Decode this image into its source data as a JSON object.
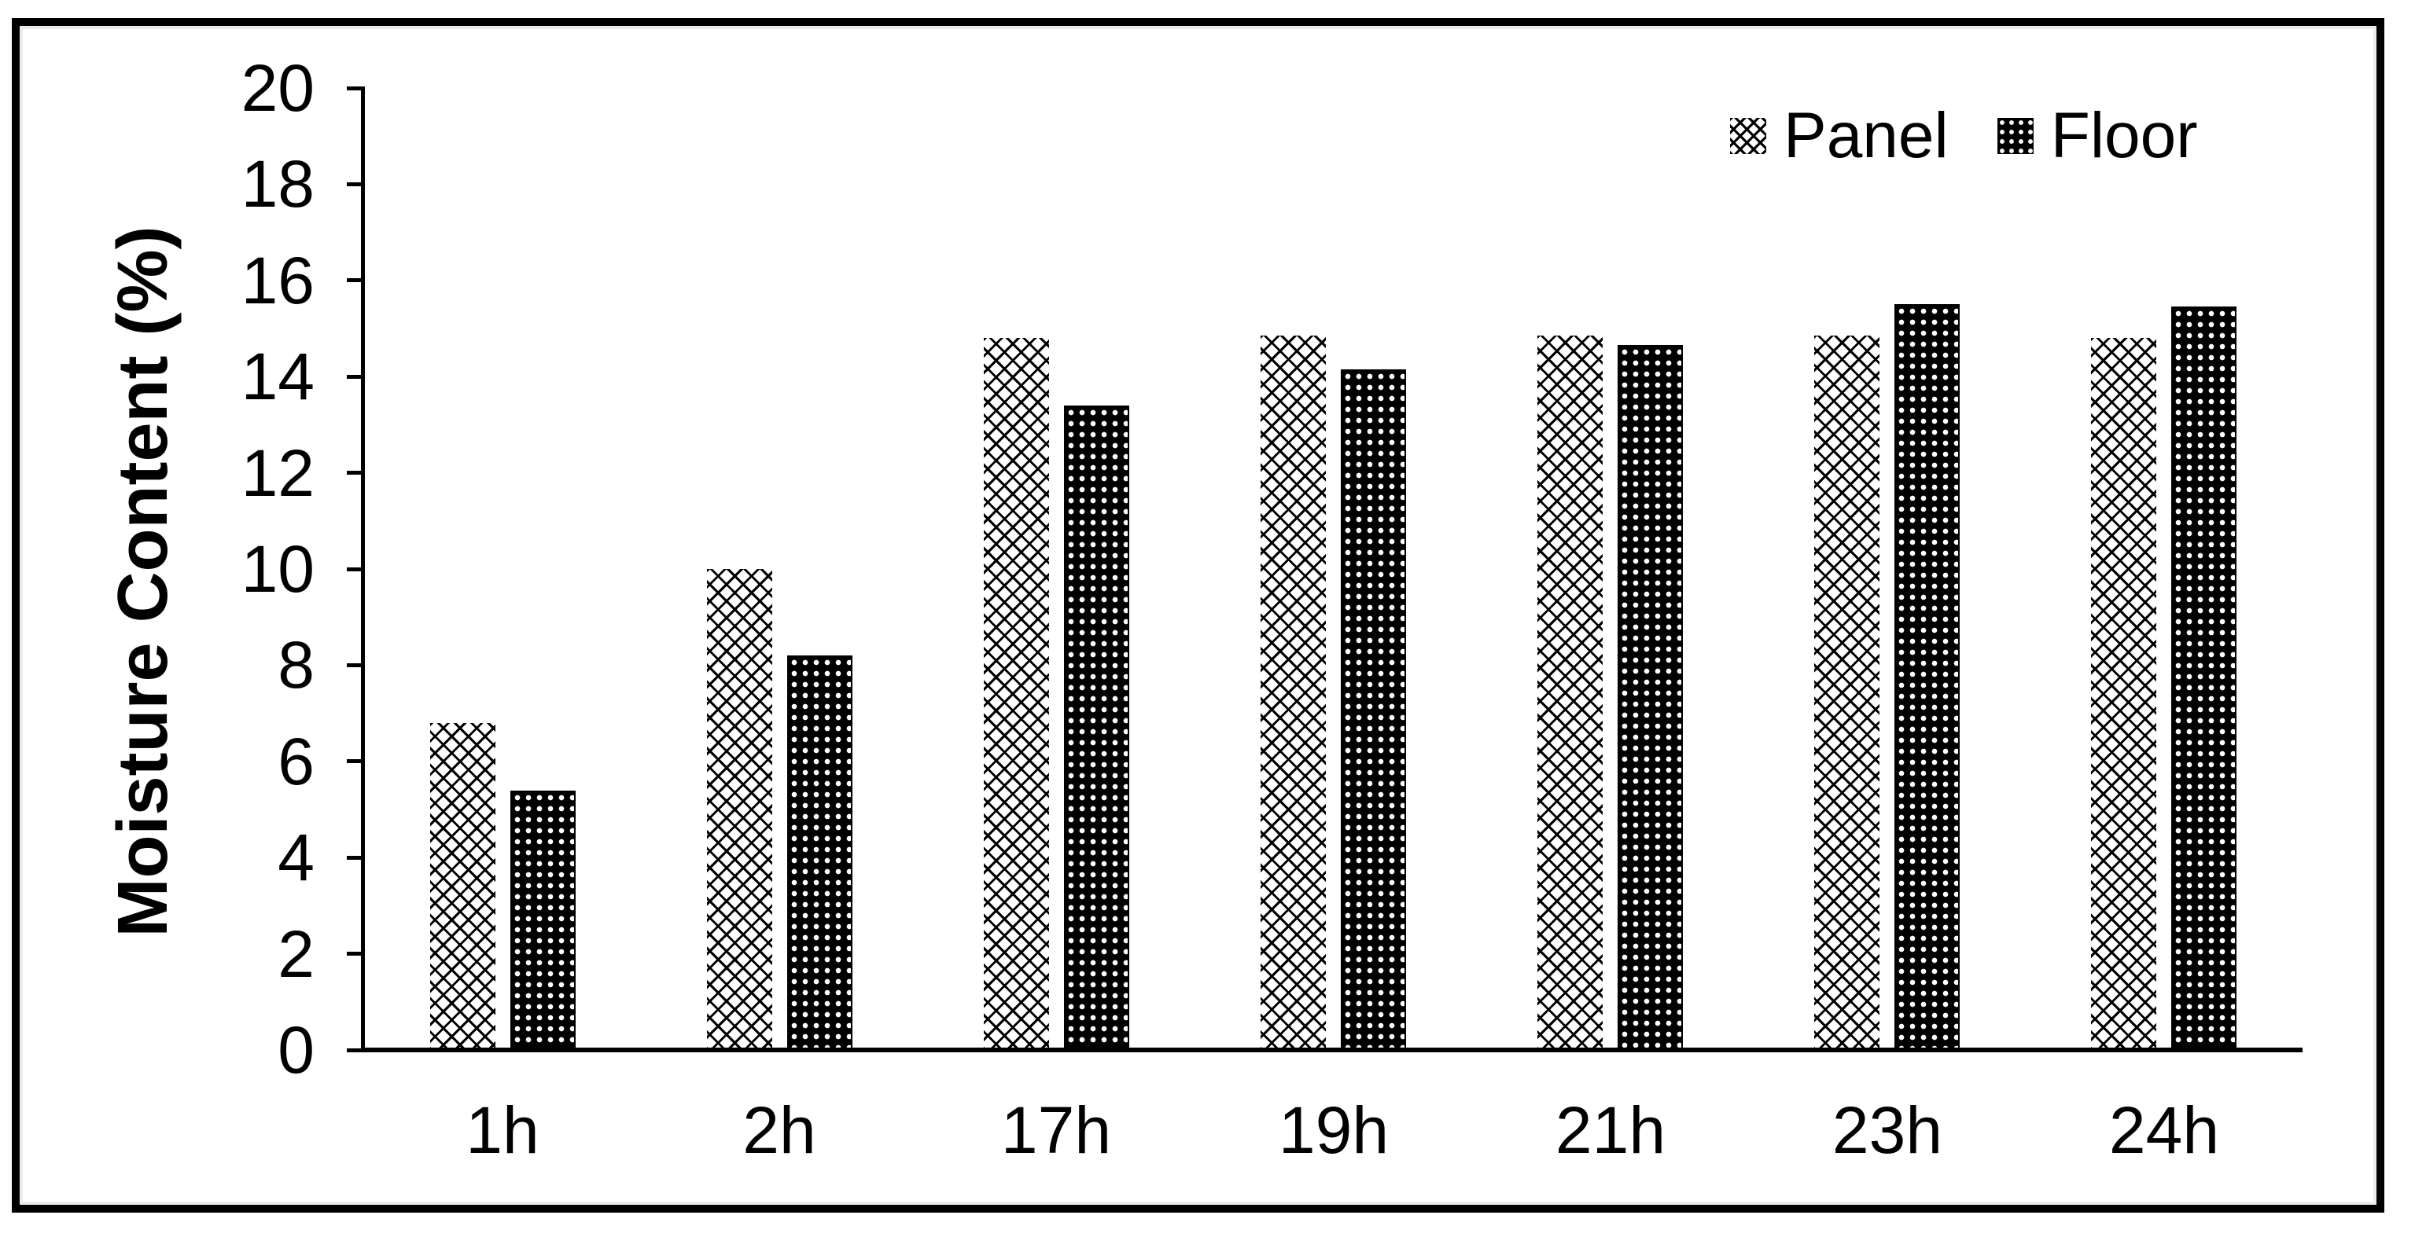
{
  "figure": {
    "background": "#ffffff",
    "frame_border_color": "#000000",
    "text_color": "#000000"
  },
  "chart_data": {
    "type": "bar",
    "title": "",
    "categories": [
      "1h",
      "2h",
      "17h",
      "19h",
      "21h",
      "23h",
      "24h"
    ],
    "series": [
      {
        "name": "Panel",
        "pattern": "diagonal-crosshatch-light",
        "fill_color": "#000000",
        "background_color": "#ffffff",
        "values": [
          6.8,
          10.0,
          14.8,
          14.85,
          14.85,
          14.85,
          14.8
        ]
      },
      {
        "name": "Floor",
        "pattern": "dark-dotted-grid",
        "fill_color": "#000000",
        "background_color": "#ffffff",
        "values": [
          5.4,
          8.2,
          13.4,
          14.15,
          14.65,
          15.5,
          15.45
        ]
      }
    ],
    "xlabel": "",
    "ylabel": "Moisture Content (%)",
    "ylim": [
      0,
      20
    ],
    "ytick_step": 2,
    "yticks": [
      0,
      2,
      4,
      6,
      8,
      10,
      12,
      14,
      16,
      18,
      20
    ],
    "grid": false,
    "legend_position": "top-right"
  }
}
